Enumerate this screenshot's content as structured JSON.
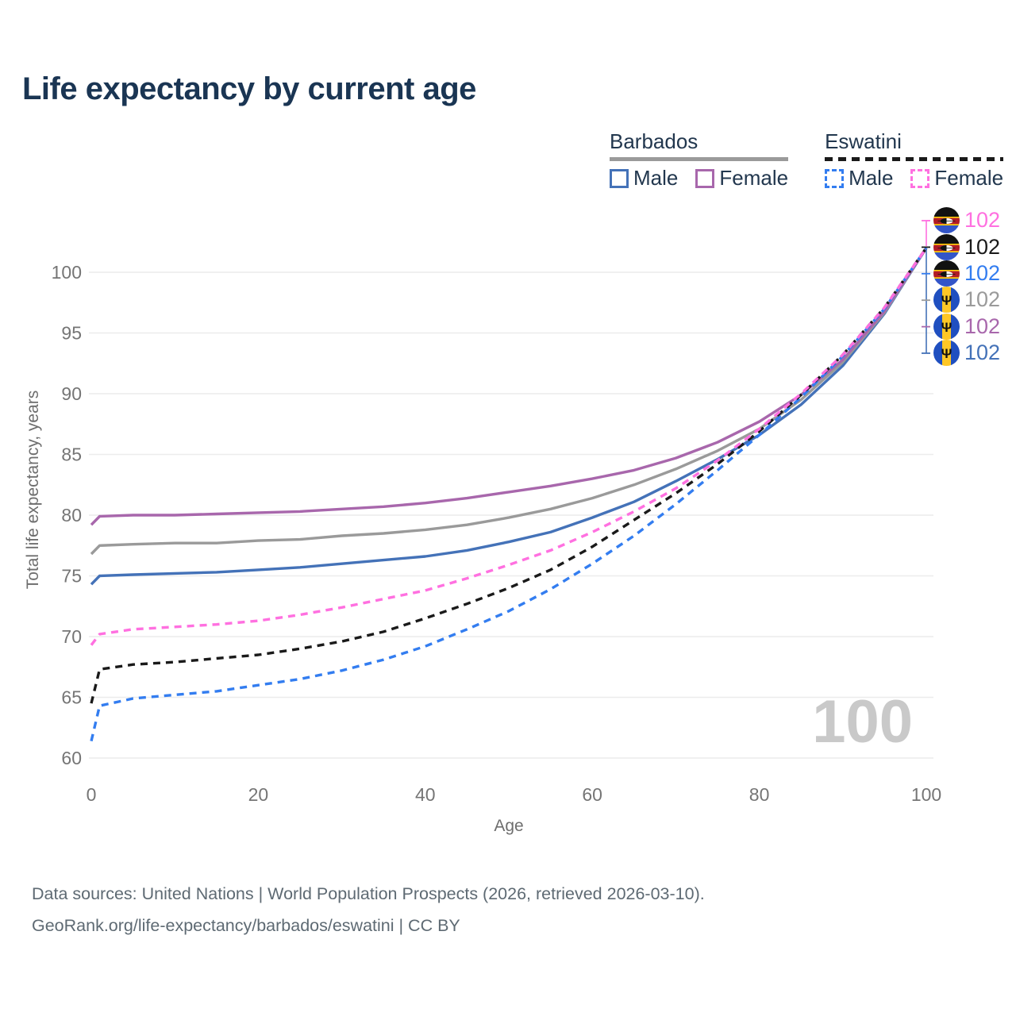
{
  "title": "Life expectancy by current age",
  "legend": {
    "groups": [
      {
        "name": "Barbados",
        "line_style": "solid",
        "underline_color": "#9a9a9a",
        "items": [
          {
            "label": "Male",
            "color": "#4472b8",
            "dash": false
          },
          {
            "label": "Female",
            "color": "#a867ac",
            "dash": false
          }
        ]
      },
      {
        "name": "Eswatini",
        "line_style": "dashed",
        "underline_color": "#1a1a1a",
        "items": [
          {
            "label": "Male",
            "color": "#337df0",
            "dash": true
          },
          {
            "label": "Female",
            "color": "#ff70e0",
            "dash": true
          }
        ]
      }
    ]
  },
  "chart_data": {
    "type": "line",
    "title": "Life expectancy by current age",
    "xlabel": "Age",
    "ylabel": "Total life expectancy, years",
    "x_ticks": [
      0,
      20,
      40,
      60,
      80,
      100
    ],
    "y_ticks": [
      60,
      65,
      70,
      75,
      80,
      85,
      90,
      95,
      100
    ],
    "xlim": [
      0,
      100
    ],
    "ylim": [
      60,
      103.5
    ],
    "grid": "horizontal",
    "legend_position": "top-right",
    "ages": [
      0,
      1,
      5,
      10,
      15,
      20,
      25,
      30,
      35,
      40,
      45,
      50,
      55,
      60,
      65,
      70,
      75,
      80,
      85,
      90,
      95,
      100
    ],
    "series": [
      {
        "name": "Barbados Male",
        "country": "Barbados",
        "sex": "Male",
        "color": "#4472b8",
        "dash": "solid",
        "values": [
          74.3,
          75.0,
          75.1,
          75.2,
          75.3,
          75.5,
          75.7,
          76.0,
          76.3,
          76.6,
          77.1,
          77.8,
          78.6,
          79.8,
          81.1,
          82.8,
          84.6,
          86.6,
          89.1,
          92.3,
          96.6,
          102
        ]
      },
      {
        "name": "Barbados Both sexes",
        "country": "Barbados",
        "sex": "Both",
        "color": "#9a9a9a",
        "dash": "solid",
        "values": [
          76.8,
          77.5,
          77.6,
          77.7,
          77.7,
          77.9,
          78.0,
          78.3,
          78.5,
          78.8,
          79.2,
          79.8,
          80.5,
          81.4,
          82.5,
          83.8,
          85.3,
          87.1,
          89.5,
          92.6,
          96.7,
          102
        ]
      },
      {
        "name": "Barbados Female",
        "country": "Barbados",
        "sex": "Female",
        "color": "#a867ac",
        "dash": "solid",
        "values": [
          79.2,
          79.9,
          80.0,
          80.0,
          80.1,
          80.2,
          80.3,
          80.5,
          80.7,
          81.0,
          81.4,
          81.9,
          82.4,
          83.0,
          83.7,
          84.7,
          86.0,
          87.7,
          89.9,
          92.8,
          96.8,
          102
        ]
      },
      {
        "name": "Eswatini Male",
        "country": "Eswatini",
        "sex": "Male",
        "color": "#337df0",
        "dash": "dashed",
        "values": [
          61.4,
          64.3,
          64.9,
          65.2,
          65.5,
          66.0,
          66.5,
          67.2,
          68.1,
          69.2,
          70.6,
          72.1,
          73.9,
          76.0,
          78.3,
          80.9,
          83.7,
          86.6,
          89.7,
          93.1,
          97.0,
          102
        ]
      },
      {
        "name": "Eswatini Both sexes",
        "country": "Eswatini",
        "sex": "Both",
        "color": "#1a1a1a",
        "dash": "dashed",
        "values": [
          64.5,
          67.3,
          67.7,
          67.9,
          68.2,
          68.5,
          69.0,
          69.6,
          70.4,
          71.5,
          72.7,
          74.0,
          75.5,
          77.4,
          79.6,
          81.8,
          84.2,
          86.9,
          89.9,
          93.2,
          97.1,
          102
        ]
      },
      {
        "name": "Eswatini Female",
        "country": "Eswatini",
        "sex": "Female",
        "color": "#ff70e0",
        "dash": "dashed",
        "values": [
          69.3,
          70.2,
          70.6,
          70.8,
          71.0,
          71.3,
          71.8,
          72.4,
          73.1,
          73.8,
          74.8,
          75.9,
          77.1,
          78.6,
          80.3,
          82.2,
          84.5,
          87.1,
          90.0,
          93.2,
          97.1,
          102
        ]
      }
    ],
    "end_labels": [
      {
        "flag": "eswatini",
        "value": "102",
        "color": "#ff70e0",
        "series": "Eswatini Female"
      },
      {
        "flag": "eswatini",
        "value": "102",
        "color": "#1a1a1a",
        "series": "Eswatini Both sexes"
      },
      {
        "flag": "eswatini",
        "value": "102",
        "color": "#337df0",
        "series": "Eswatini Male"
      },
      {
        "flag": "barbados",
        "value": "102",
        "color": "#9a9a9a",
        "series": "Barbados Both sexes"
      },
      {
        "flag": "barbados",
        "value": "102",
        "color": "#a867ac",
        "series": "Barbados Female"
      },
      {
        "flag": "barbados",
        "value": "102",
        "color": "#4472b8",
        "series": "Barbados Male"
      }
    ],
    "watermark": "100"
  },
  "colors": {
    "title": "#1a3553",
    "axis_tick": "#757575",
    "axis_title": "#6e6e6e",
    "gridline": "#ececec",
    "watermark": "#c9c9c9",
    "footer": "#5e6a73",
    "flag_barbados_blue": "#1f4fc0",
    "flag_barbados_gold": "#ffc726",
    "flag_eswatini_red": "#b11c26",
    "flag_eswatini_blue": "#3355c8"
  },
  "footer": {
    "line1": "Data sources: United Nations | World Population Prospects (2026, retrieved 2026-03-10).",
    "line2": "GeoRank.org/life-expectancy/barbados/eswatini | CC BY"
  }
}
